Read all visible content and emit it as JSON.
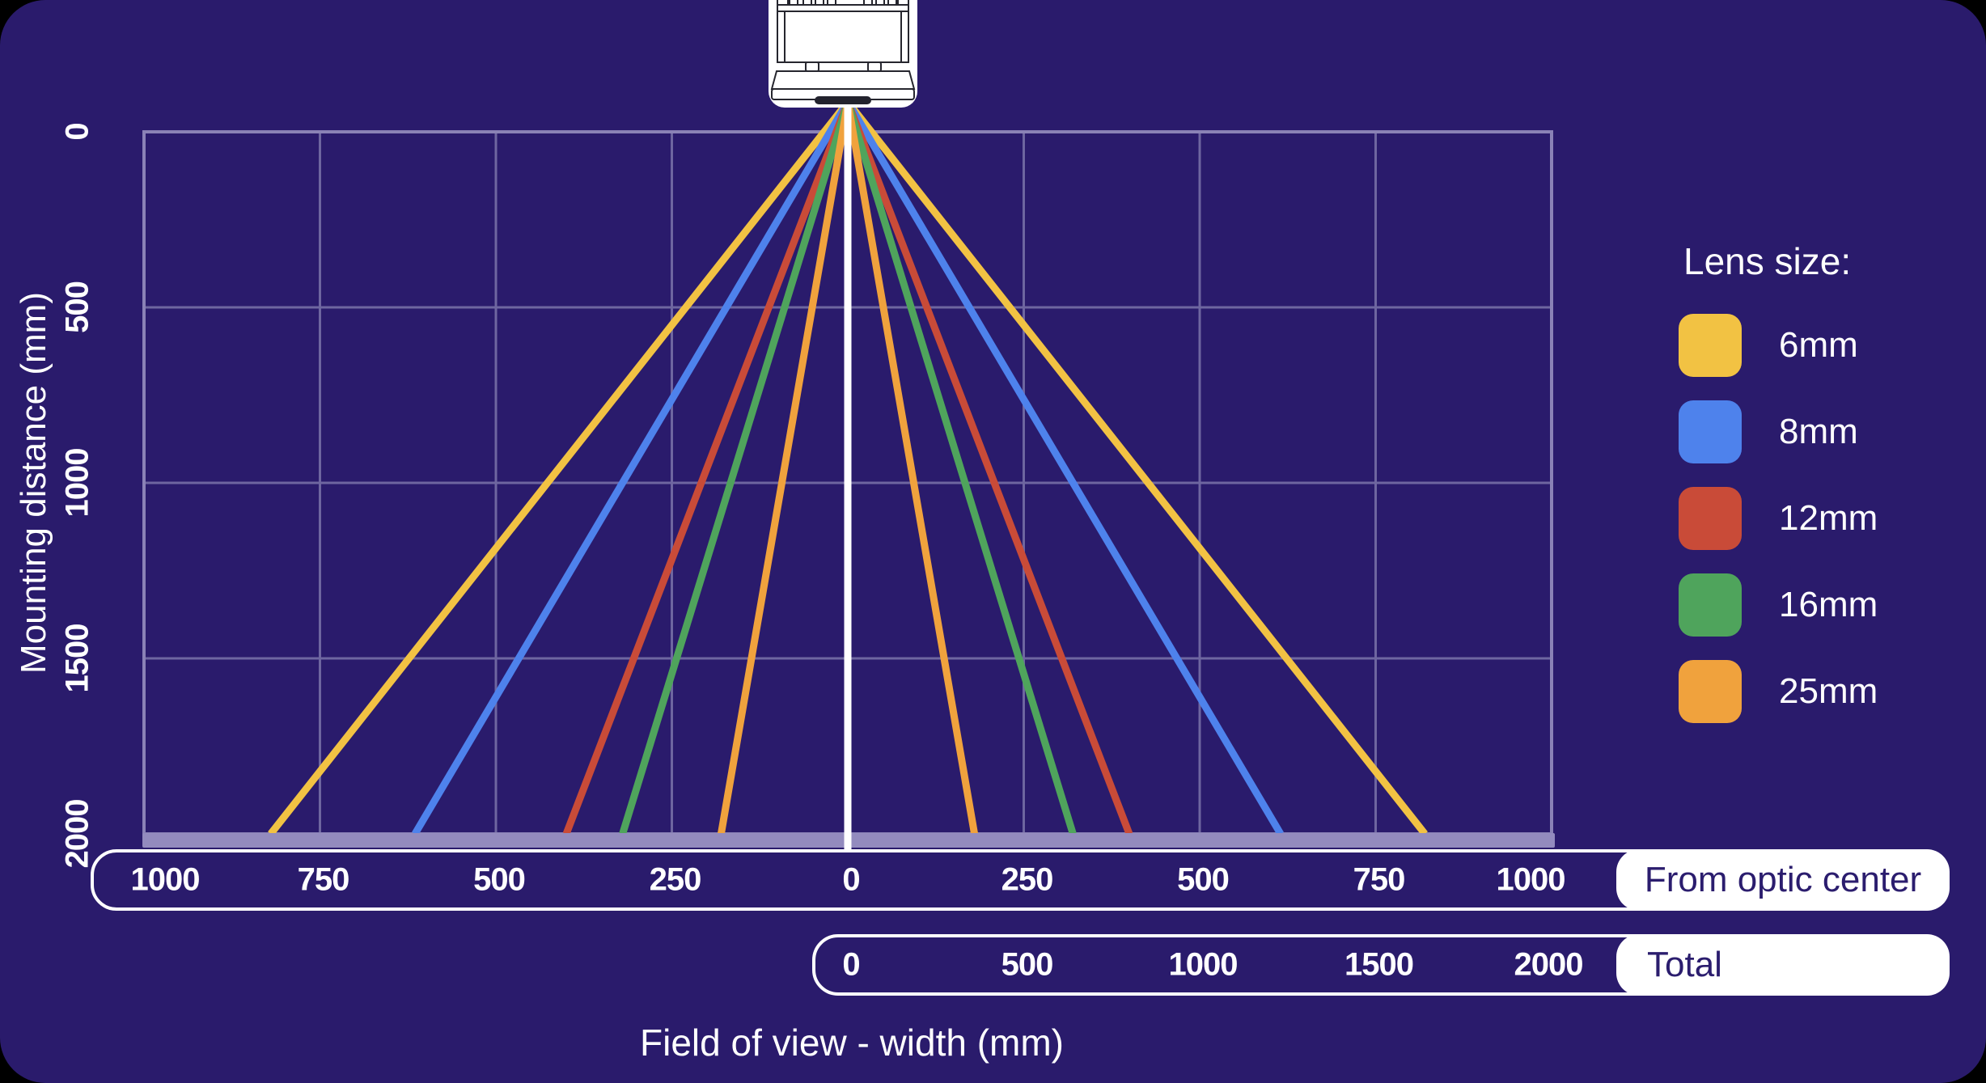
{
  "legend": {
    "title": "Lens size:"
  },
  "camera": {
    "name": "top-mounted camera sensor illustration"
  },
  "chart_data": {
    "type": "line",
    "title": "",
    "xlabel": "Field of view - width (mm)",
    "ylabel": "Mounting distance (mm)",
    "grid": true,
    "y_axis": {
      "ticks": [
        0,
        500,
        1000,
        1500,
        2000
      ],
      "range": [
        0,
        2000
      ]
    },
    "x_axis_from_optic_center": {
      "label": "From optic center",
      "ticks": [
        "1000",
        "750",
        "500",
        "250",
        "0",
        "250",
        "500",
        "750",
        "1000"
      ],
      "range_mm": [
        -1000,
        1000
      ],
      "gridline_step_mm": 250
    },
    "x_axis_total": {
      "label": "Total",
      "ticks": [
        "0",
        "500",
        "1000",
        "1500",
        "2000"
      ]
    },
    "center_line": {
      "color": "#FFFFFF",
      "x_mm": 0
    },
    "series": [
      {
        "name": "6mm",
        "color": "#F2C243",
        "half_fov_mm_at_2000": 820,
        "total_fov_mm_at_2000": 1640
      },
      {
        "name": "8mm",
        "color": "#4E82EC",
        "half_fov_mm_at_2000": 615,
        "total_fov_mm_at_2000": 1230
      },
      {
        "name": "12mm",
        "color": "#C94B38",
        "half_fov_mm_at_2000": 400,
        "total_fov_mm_at_2000": 800
      },
      {
        "name": "16mm",
        "color": "#4FA45C",
        "half_fov_mm_at_2000": 320,
        "total_fov_mm_at_2000": 640
      },
      {
        "name": "25mm",
        "color": "#F0A23D",
        "half_fov_mm_at_2000": 180,
        "total_fov_mm_at_2000": 360
      }
    ],
    "colors": {
      "background": "#2A1B6C",
      "gridline": "#6E66A0",
      "frame": "#8A82B6",
      "axis_bar": "#938BBE",
      "pill_text": "#2B1D6E"
    }
  }
}
